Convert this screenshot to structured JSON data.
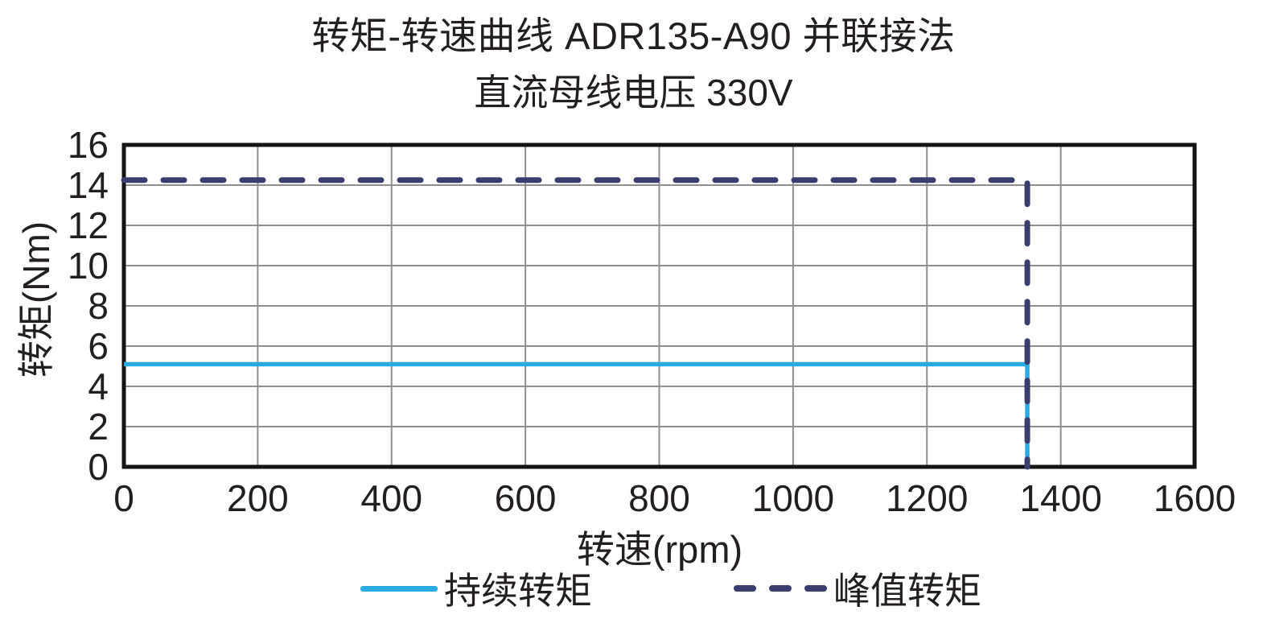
{
  "chart_data": {
    "type": "line",
    "title": "转矩-转速曲线 ADR135-A90 并联接法",
    "subtitle": "直流母线电压 330V",
    "xlabel": "转速(rpm)",
    "ylabel": "转矩(Nm)",
    "xlim": [
      0,
      1600
    ],
    "ylim": [
      0,
      16
    ],
    "x_ticks": [
      0,
      200,
      400,
      600,
      800,
      1000,
      1200,
      1400,
      1600
    ],
    "y_ticks": [
      0,
      2,
      4,
      6,
      8,
      10,
      12,
      14,
      16
    ],
    "grid": true,
    "legend_position": "bottom",
    "series": [
      {
        "name": "持续转矩",
        "style": "solid",
        "color": "#29ABE2",
        "points": [
          [
            0,
            5.1
          ],
          [
            1350,
            5.1
          ],
          [
            1350,
            0
          ]
        ]
      },
      {
        "name": "峰值转矩",
        "style": "dashed",
        "color": "#3A3E6E",
        "points": [
          [
            0,
            14.25
          ],
          [
            1350,
            14.25
          ],
          [
            1350,
            0
          ]
        ]
      }
    ]
  },
  "colors": {
    "grid": "#8F8F8F",
    "axis": "#141414",
    "text": "#231F20"
  }
}
